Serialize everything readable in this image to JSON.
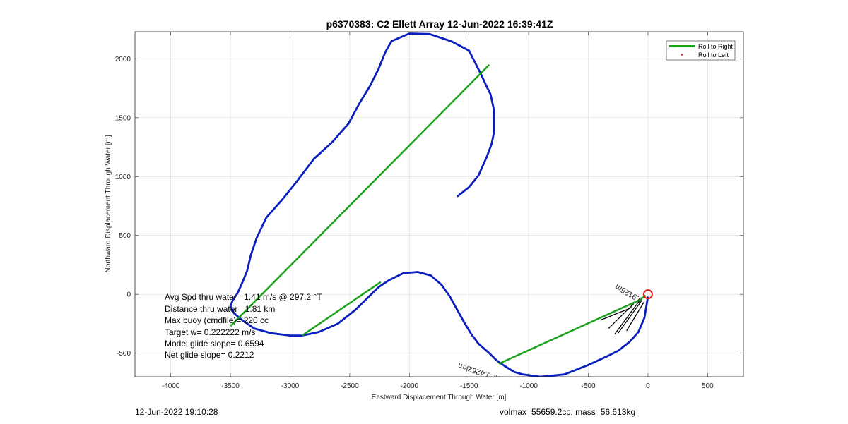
{
  "chart_data": {
    "type": "line",
    "title": "p6370383: C2 Ellett Array 12-Jun-2022 16:39:41Z",
    "xlabel": "Eastward Displacement Through Water [m]",
    "ylabel": "Northward Displacement Through Water [m]",
    "xlim": [
      -4300,
      800
    ],
    "ylim": [
      -700,
      2230
    ],
    "grid": true,
    "x_ticks": [
      -4000,
      -3500,
      -3000,
      -2500,
      -2000,
      -1500,
      -1000,
      -500,
      0,
      500
    ],
    "y_ticks": [
      -500,
      0,
      500,
      1000,
      1500,
      2000
    ],
    "legend_position": "top-right",
    "colors": {
      "track": "#0b1fbf",
      "roll_right": "#1aa31a",
      "roll_left": "#e31a1c",
      "start_marker": "#e31a1c",
      "annotation": "#000000",
      "grid": "#dcdcdc",
      "axes": "#262626"
    },
    "series": [
      {
        "name": "",
        "role": "track",
        "x": [
          -1600,
          -1500,
          -1420,
          -1350,
          -1310,
          -1290,
          -1290,
          -1320,
          -1350,
          -1400,
          -1500,
          -1650,
          -1830,
          -2000,
          -2150,
          -2200,
          -2260,
          -2330,
          -2420,
          -2510,
          -2650,
          -2800,
          -2950,
          -3070,
          -3200,
          -3280,
          -3330,
          -3360,
          -3400,
          -3440,
          -3480,
          -3500,
          -3470,
          -3400,
          -3300,
          -3160,
          -3000,
          -2900,
          -2760,
          -2600,
          -2450,
          -2350,
          -2260,
          -2170,
          -2050,
          -1930,
          -1820,
          -1730,
          -1660,
          -1600,
          -1540,
          -1480,
          -1420,
          -1330,
          -1270,
          -1200,
          -1120,
          -1050,
          -900,
          -700,
          -500,
          -350,
          -250,
          -150,
          -80,
          -30,
          0
        ],
        "y": [
          830,
          910,
          1010,
          1170,
          1280,
          1380,
          1560,
          1700,
          1760,
          1870,
          2070,
          2150,
          2210,
          2215,
          2150,
          2060,
          1910,
          1770,
          1620,
          1450,
          1290,
          1150,
          950,
          800,
          650,
          480,
          330,
          200,
          100,
          10,
          -50,
          -100,
          -160,
          -220,
          -290,
          -330,
          -350,
          -350,
          -320,
          -250,
          -130,
          -30,
          60,
          120,
          180,
          190,
          160,
          80,
          -20,
          -130,
          -240,
          -340,
          -420,
          -500,
          -560,
          -610,
          -660,
          -680,
          -700,
          -680,
          -600,
          -530,
          -480,
          -400,
          -320,
          -200,
          -20
        ]
      },
      {
        "name": "Roll to Right",
        "role": "roll_right",
        "segments": [
          {
            "x": [
              -3500,
              -1330
            ],
            "y": [
              -270,
              1950
            ]
          },
          {
            "x": [
              -2900,
              -2240
            ],
            "y": [
              -350,
              105
            ]
          },
          {
            "x": [
              -1250,
              -50
            ],
            "y": [
              -590,
              -40
            ]
          },
          {
            "x": [
              -60,
              -20
            ],
            "y": [
              -40,
              -10
            ]
          }
        ]
      },
      {
        "name": "Roll to Left",
        "role": "roll_left",
        "x": [],
        "y": []
      }
    ],
    "start_marker": {
      "x": 0,
      "y": 0
    },
    "annotations": {
      "lines": [
        {
          "x": [
            -280,
            -60
          ],
          "y": [
            -340,
            -40
          ]
        },
        {
          "x": [
            -400,
            -130
          ],
          "y": [
            -220,
            -110
          ]
        },
        {
          "x": [
            -330,
            -120
          ],
          "y": [
            -290,
            -80
          ]
        },
        {
          "x": [
            -250,
            -50
          ],
          "y": [
            -330,
            -50
          ]
        },
        {
          "x": [
            -180,
            -30
          ],
          "y": [
            -310,
            -60
          ]
        }
      ],
      "upside_down_text": [
        {
          "text": "0.3565hr 0.4262km",
          "x": -1050,
          "y": -760,
          "angle": 198
        },
        {
          "text": "0.9126m",
          "x": -40,
          "y": -40,
          "angle": 210
        }
      ]
    }
  },
  "stats": {
    "avg_spd": "Avg Spd thru water=  1.41 m/s @ 297.2 °T",
    "distance": "Distance thru water=  1.81 km",
    "max_buoy": "Max buoy (cmdfile)= 220 cc",
    "target_w": "Target w= 0.222222 m/s",
    "model_glide": "Model glide slope= 0.6594",
    "net_glide": "Net glide slope= 0.2212"
  },
  "footer": {
    "timestamp": "12-Jun-2022 19:10:28",
    "volmax_mass": "volmax=55659.2cc, mass=56.613kg"
  }
}
